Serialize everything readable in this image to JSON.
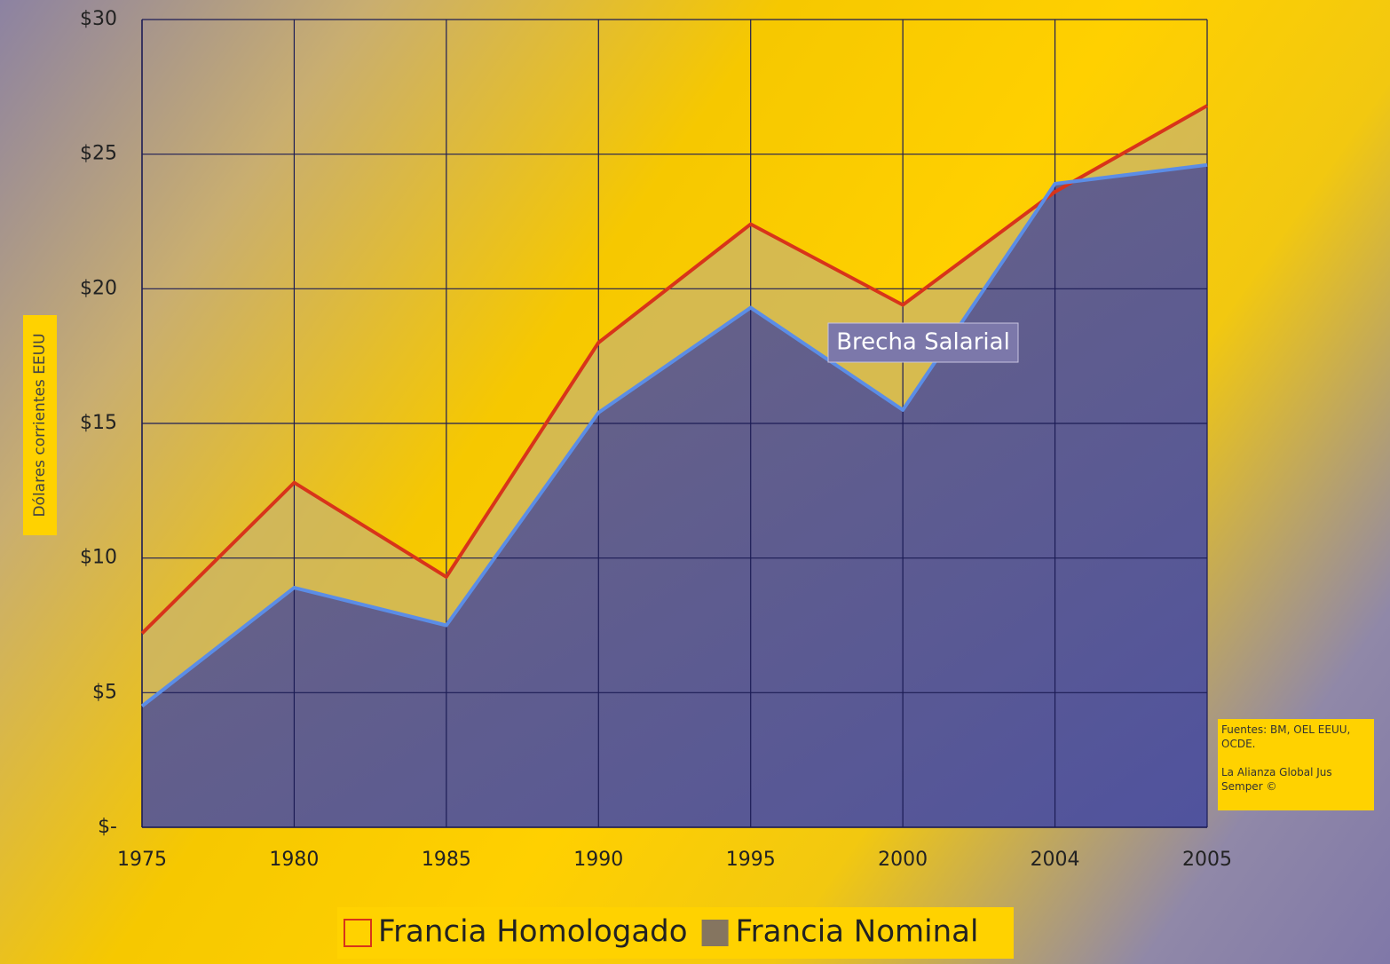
{
  "chart_data": {
    "type": "area",
    "categories": [
      "1975",
      "1980",
      "1985",
      "1990",
      "1995",
      "2000",
      "2004",
      "2005"
    ],
    "series": [
      {
        "name": "Francia Homologado",
        "color": "#d8341a",
        "fill": "#c9b46a",
        "values": [
          7.2,
          12.8,
          9.3,
          18.0,
          22.4,
          19.4,
          23.6,
          26.8
        ]
      },
      {
        "name": "Francia Nominal",
        "color": "#5b8de6",
        "fill": "#857560",
        "values": [
          4.5,
          8.9,
          7.5,
          15.4,
          19.3,
          15.5,
          23.9,
          24.6
        ]
      }
    ],
    "ylabel": "Dólares corrientes EEUU",
    "ylim": [
      0,
      30
    ],
    "yticks": [
      {
        "value": 0,
        "label": "$-"
      },
      {
        "value": 5,
        "label": "$5"
      },
      {
        "value": 10,
        "label": "$10"
      },
      {
        "value": 15,
        "label": "$15"
      },
      {
        "value": 20,
        "label": "$20"
      },
      {
        "value": 25,
        "label": "$25"
      },
      {
        "value": 30,
        "label": "$30"
      }
    ],
    "grid": true,
    "annotation": "Brecha Salarial",
    "source": [
      "Fuentes: BM, OEL EEUU, OCDE.",
      "La Alianza Global Jus Semper ©"
    ]
  }
}
